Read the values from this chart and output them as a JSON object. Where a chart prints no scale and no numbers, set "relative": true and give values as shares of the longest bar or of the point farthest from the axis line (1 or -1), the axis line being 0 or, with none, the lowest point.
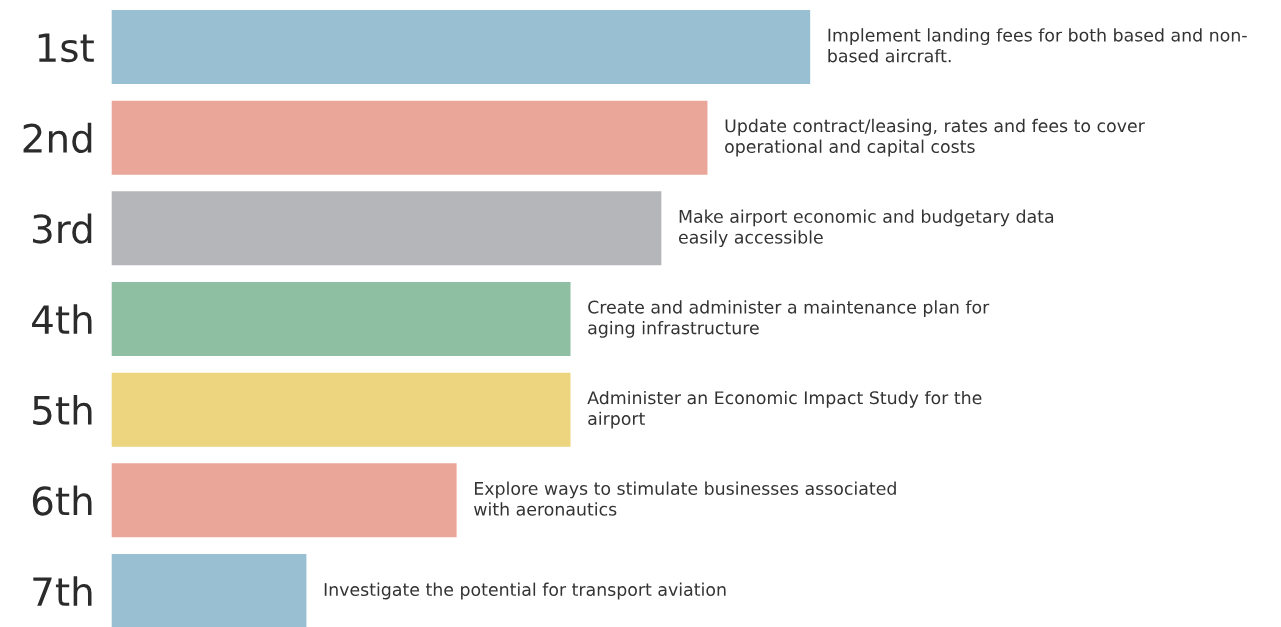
{
  "chart_data": {
    "type": "bar",
    "orientation": "horizontal",
    "relative": true,
    "categories": [
      "1st",
      "2nd",
      "3rd",
      "4th",
      "5th",
      "6th",
      "7th"
    ],
    "values": [
      1,
      0.853,
      0.787,
      0.657,
      0.657,
      0.494,
      0.279
    ],
    "colors": [
      "#98c0d2",
      "#eaa698",
      "#b5b6ba",
      "#8fbfa3",
      "#edd580",
      "#eaa698",
      "#98c0d2"
    ],
    "annotations": [
      {
        "text": "Implement landing fees for both based and non-\nbased aircraft.",
        "x": 1,
        "y": "1st"
      },
      {
        "text": "Update contract/leasing, rates and fees to cover\noperational and capital costs",
        "x": 0.853,
        "y": "2nd"
      },
      {
        "text": "Make airport economic and budgetary data\neasily accessible",
        "x": 0.787,
        "y": "3rd"
      },
      {
        "text": "Create and administer a maintenance plan for\naging infrastructure",
        "x": 0.657,
        "y": "4th"
      },
      {
        "text": "Administer an Economic Impact Study for the\nairport",
        "x": 0.657,
        "y": "5th"
      },
      {
        "text": "Explore ways to stimulate businesses associated\nwith aeronautics",
        "x": 0.494,
        "y": "6th"
      },
      {
        "text": "Investigate the potential for transport aviation",
        "x": 0.279,
        "y": "7th"
      }
    ],
    "grid": false
  }
}
